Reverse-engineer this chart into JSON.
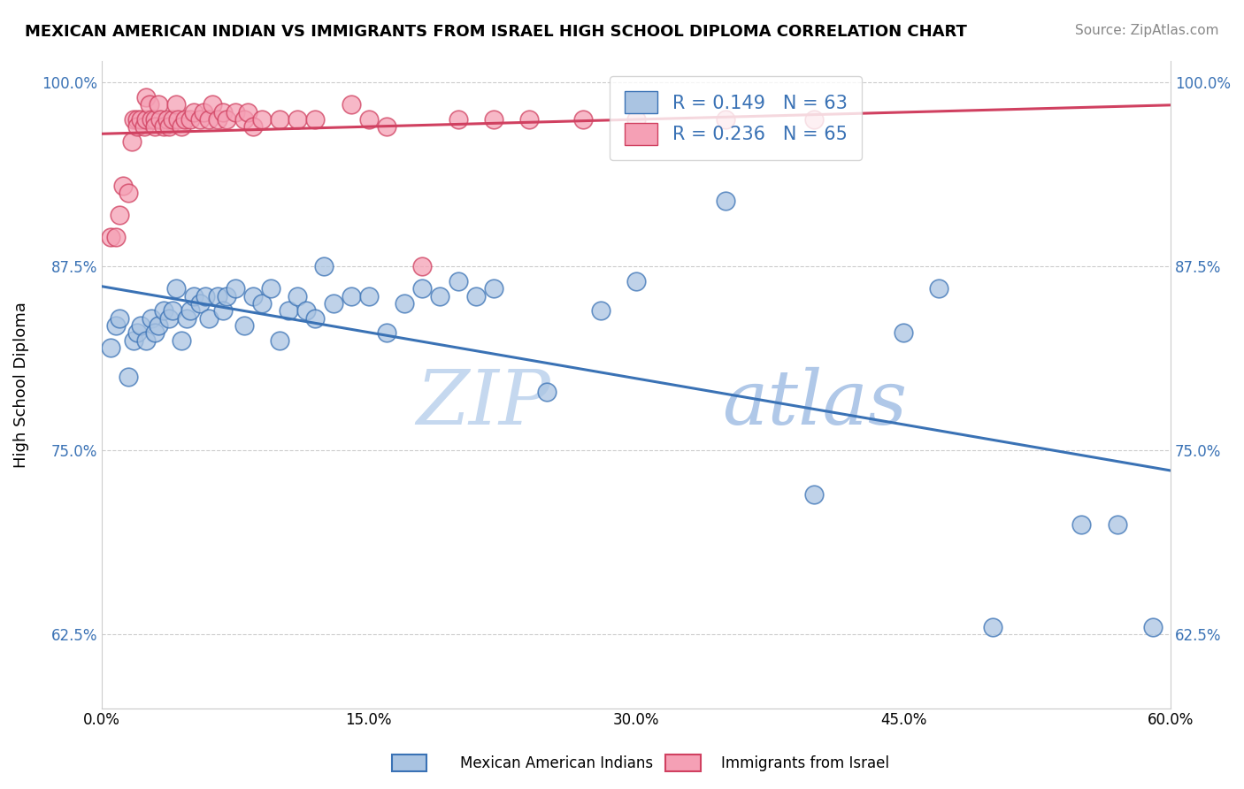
{
  "title": "MEXICAN AMERICAN INDIAN VS IMMIGRANTS FROM ISRAEL HIGH SCHOOL DIPLOMA CORRELATION CHART",
  "source": "Source: ZipAtlas.com",
  "ylabel": "High School Diploma",
  "xlim": [
    0.0,
    0.6
  ],
  "ylim": [
    0.575,
    1.015
  ],
  "yticks": [
    0.625,
    0.75,
    0.875,
    1.0
  ],
  "ytick_labels": [
    "62.5%",
    "75.0%",
    "87.5%",
    "100.0%"
  ],
  "xticks": [
    0.0,
    0.15,
    0.3,
    0.45,
    0.6
  ],
  "xtick_labels": [
    "0.0%",
    "15.0%",
    "30.0%",
    "45.0%",
    "60.0%"
  ],
  "blue_R": 0.149,
  "blue_N": 63,
  "pink_R": 0.236,
  "pink_N": 65,
  "blue_color": "#aac4e2",
  "pink_color": "#f5a0b5",
  "blue_line_color": "#3a72b5",
  "pink_line_color": "#d04060",
  "blue_label": "Mexican American Indians",
  "pink_label": "Immigrants from Israel",
  "legend_text_color": "#3a72b5",
  "watermark_color": "#d0dff0",
  "blue_x": [
    0.005,
    0.008,
    0.01,
    0.015,
    0.018,
    0.02,
    0.022,
    0.025,
    0.028,
    0.03,
    0.032,
    0.035,
    0.038,
    0.04,
    0.042,
    0.045,
    0.048,
    0.05,
    0.052,
    0.055,
    0.058,
    0.06,
    0.065,
    0.068,
    0.07,
    0.075,
    0.08,
    0.085,
    0.09,
    0.095,
    0.1,
    0.105,
    0.11,
    0.115,
    0.12,
    0.125,
    0.13,
    0.14,
    0.15,
    0.16,
    0.17,
    0.18,
    0.19,
    0.2,
    0.21,
    0.22,
    0.25,
    0.28,
    0.3,
    0.35,
    0.4,
    0.45,
    0.47,
    0.5,
    0.55,
    0.57,
    0.59
  ],
  "blue_y": [
    0.82,
    0.835,
    0.84,
    0.8,
    0.825,
    0.83,
    0.835,
    0.825,
    0.84,
    0.83,
    0.835,
    0.845,
    0.84,
    0.845,
    0.86,
    0.825,
    0.84,
    0.845,
    0.855,
    0.85,
    0.855,
    0.84,
    0.855,
    0.845,
    0.855,
    0.86,
    0.835,
    0.855,
    0.85,
    0.86,
    0.825,
    0.845,
    0.855,
    0.845,
    0.84,
    0.875,
    0.85,
    0.855,
    0.855,
    0.83,
    0.85,
    0.86,
    0.855,
    0.865,
    0.855,
    0.86,
    0.79,
    0.845,
    0.865,
    0.92,
    0.72,
    0.83,
    0.86,
    0.63,
    0.7,
    0.7,
    0.63
  ],
  "pink_x": [
    0.005,
    0.008,
    0.01,
    0.012,
    0.015,
    0.017,
    0.018,
    0.02,
    0.02,
    0.022,
    0.024,
    0.025,
    0.025,
    0.027,
    0.028,
    0.03,
    0.03,
    0.032,
    0.033,
    0.035,
    0.037,
    0.038,
    0.04,
    0.042,
    0.043,
    0.045,
    0.047,
    0.05,
    0.052,
    0.055,
    0.057,
    0.06,
    0.062,
    0.065,
    0.068,
    0.07,
    0.075,
    0.08,
    0.082,
    0.085,
    0.09,
    0.1,
    0.11,
    0.12,
    0.14,
    0.15,
    0.16,
    0.18,
    0.2,
    0.22,
    0.24,
    0.27,
    0.3,
    0.35,
    0.4
  ],
  "pink_y": [
    0.895,
    0.895,
    0.91,
    0.93,
    0.925,
    0.96,
    0.975,
    0.975,
    0.97,
    0.975,
    0.97,
    0.975,
    0.99,
    0.985,
    0.975,
    0.975,
    0.97,
    0.985,
    0.975,
    0.97,
    0.975,
    0.97,
    0.975,
    0.985,
    0.975,
    0.97,
    0.975,
    0.975,
    0.98,
    0.975,
    0.98,
    0.975,
    0.985,
    0.975,
    0.98,
    0.975,
    0.98,
    0.975,
    0.98,
    0.97,
    0.975,
    0.975,
    0.975,
    0.975,
    0.985,
    0.975,
    0.97,
    0.875,
    0.975,
    0.975,
    0.975,
    0.975,
    0.975,
    0.975,
    0.975
  ]
}
